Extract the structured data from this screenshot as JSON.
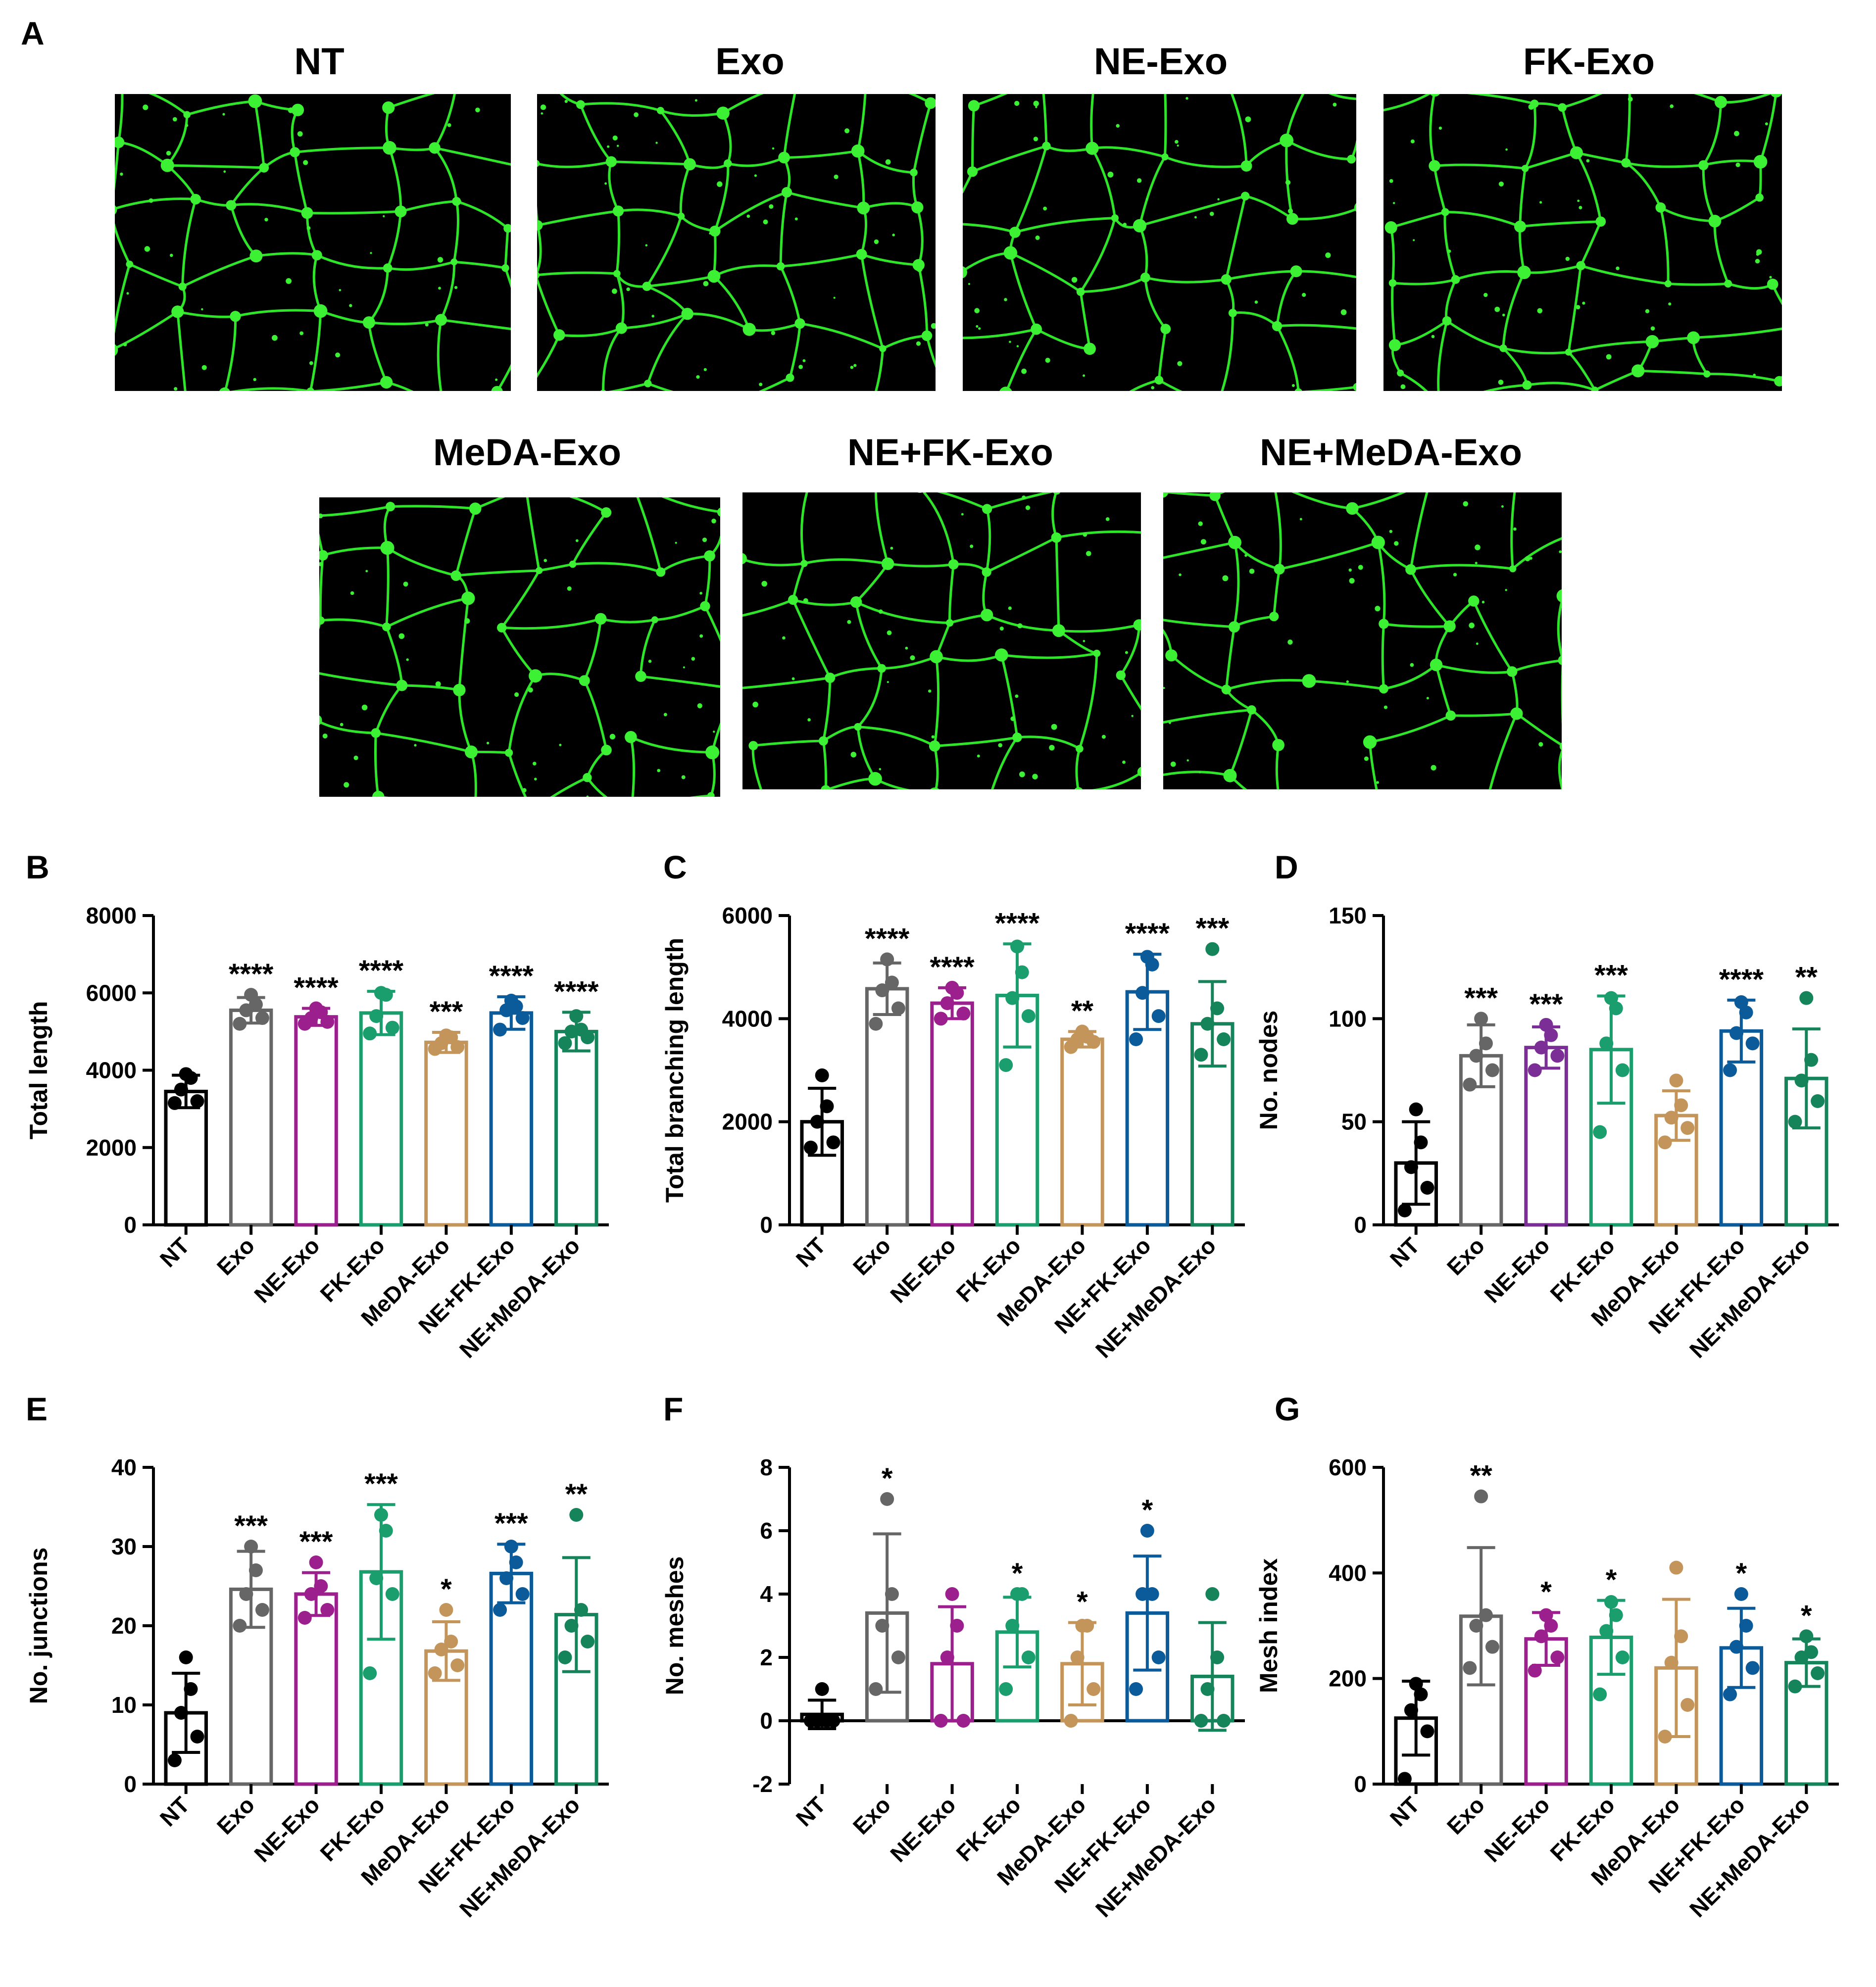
{
  "figure": {
    "panel_a": {
      "letter": "A",
      "images": [
        {
          "title": "NT"
        },
        {
          "title": "Exo"
        },
        {
          "title": "NE-Exo"
        },
        {
          "title": "FK-Exo"
        },
        {
          "title": "MeDA-Exo"
        },
        {
          "title": "NE+FK-Exo"
        },
        {
          "title": "NE+MeDA-Exo"
        }
      ],
      "fluorescence_color": "#2fe52a"
    }
  },
  "chart_data": [
    {
      "panel": "B",
      "type": "bar",
      "ylabel": "Total length",
      "ylim": [
        0,
        8000
      ],
      "yticks": [
        0,
        2000,
        4000,
        6000,
        8000
      ],
      "categories": [
        "NT",
        "Exo",
        "NE-Exo",
        "FK-Exo",
        "MeDA-Exo",
        "NE+FK-Exo",
        "NE+MeDA-Exo"
      ],
      "colors": [
        "#000000",
        "#666666",
        "#9b1f8c",
        "#1a9e6e",
        "#c4955a",
        "#0b5b9a",
        "#16845a"
      ],
      "means": [
        3450,
        5550,
        5380,
        5480,
        4720,
        5480,
        5000
      ],
      "sd": [
        420,
        330,
        220,
        560,
        260,
        420,
        500
      ],
      "points": [
        [
          3150,
          3200,
          3500,
          3800,
          3900
        ],
        [
          5200,
          5350,
          5550,
          5700,
          5950
        ],
        [
          5200,
          5250,
          5350,
          5500,
          5600
        ],
        [
          4950,
          5100,
          5400,
          5950,
          6000
        ],
        [
          4550,
          4600,
          4700,
          4850,
          4900
        ],
        [
          5050,
          5350,
          5550,
          5650,
          5800
        ],
        [
          4700,
          4850,
          5000,
          5050,
          5400
        ]
      ],
      "significance": [
        "",
        "****",
        "****",
        "****",
        "***",
        "****",
        "****"
      ]
    },
    {
      "panel": "C",
      "type": "bar",
      "ylabel": "Total branching length",
      "ylim": [
        0,
        6000
      ],
      "yticks": [
        0,
        2000,
        4000,
        6000
      ],
      "categories": [
        "NT",
        "Exo",
        "NE-Exo",
        "FK-Exo",
        "MeDA-Exo",
        "NE+FK-Exo",
        "NE+MeDA-Exo"
      ],
      "colors": [
        "#000000",
        "#666666",
        "#9b1f8c",
        "#1a9e6e",
        "#c4955a",
        "#0b5b9a",
        "#16845a"
      ],
      "means": [
        2000,
        4580,
        4300,
        4450,
        3600,
        4520,
        3900
      ],
      "sd": [
        650,
        500,
        300,
        1000,
        150,
        730,
        820
      ],
      "points": [
        [
          1500,
          1600,
          2000,
          2300,
          2900
        ],
        [
          3900,
          4200,
          4550,
          4700,
          5150
        ],
        [
          4000,
          4100,
          4300,
          4500,
          4600
        ],
        [
          3100,
          4050,
          4400,
          4900,
          5400
        ],
        [
          3450,
          3550,
          3600,
          3650,
          3750
        ],
        [
          3600,
          4050,
          4500,
          5050,
          5200
        ],
        [
          3300,
          3600,
          3900,
          4200,
          5350
        ]
      ],
      "significance": [
        "",
        "****",
        "****",
        "****",
        "**",
        "****",
        "***"
      ]
    },
    {
      "panel": "D",
      "type": "bar",
      "ylabel": "No. nodes",
      "ylim": [
        0,
        150
      ],
      "yticks": [
        0,
        50,
        100,
        150
      ],
      "categories": [
        "NT",
        "Exo",
        "NE-Exo",
        "FK-Exo",
        "MeDA-Exo",
        "NE+FK-Exo",
        "NE+MeDA-Exo"
      ],
      "colors": [
        "#000000",
        "#666666",
        "#7b2f96",
        "#1a9e6e",
        "#c4955a",
        "#0b5b9a",
        "#16845a"
      ],
      "means": [
        30,
        82,
        86,
        85,
        53,
        94,
        71
      ],
      "sd": [
        20,
        15,
        10,
        26,
        12,
        15,
        24
      ],
      "points": [
        [
          7,
          18,
          28,
          40,
          56
        ],
        [
          68,
          75,
          82,
          88,
          100
        ],
        [
          75,
          82,
          86,
          92,
          97
        ],
        [
          45,
          75,
          88,
          105,
          110
        ],
        [
          40,
          47,
          52,
          58,
          70
        ],
        [
          75,
          88,
          93,
          103,
          108
        ],
        [
          50,
          60,
          70,
          80,
          110
        ]
      ],
      "significance": [
        "",
        "***",
        "***",
        "***",
        "",
        "****",
        "**"
      ]
    },
    {
      "panel": "E",
      "type": "bar",
      "ylabel": "No. junctions",
      "ylim": [
        0,
        40
      ],
      "yticks": [
        0,
        10,
        20,
        30,
        40
      ],
      "categories": [
        "NT",
        "Exo",
        "NE-Exo",
        "FK-Exo",
        "MeDA-Exo",
        "NE+FK-Exo",
        "NE+MeDA-Exo"
      ],
      "colors": [
        "#000000",
        "#666666",
        "#9b1f8c",
        "#1a9e6e",
        "#c4955a",
        "#0b5b9a",
        "#16845a"
      ],
      "means": [
        9,
        24.6,
        24,
        26.8,
        16.8,
        26.6,
        21.4
      ],
      "sd": [
        5,
        4.8,
        2.7,
        8.5,
        3.7,
        3.7,
        7.2
      ],
      "points": [
        [
          3,
          6,
          9,
          12,
          16
        ],
        [
          20,
          22,
          24,
          27,
          30
        ],
        [
          21,
          22,
          24,
          25,
          28
        ],
        [
          14,
          24,
          26,
          32,
          34
        ],
        [
          14,
          15,
          17,
          18,
          22
        ],
        [
          22,
          24,
          26,
          28,
          30
        ],
        [
          16,
          18,
          20,
          22,
          34
        ]
      ],
      "significance": [
        "",
        "***",
        "***",
        "***",
        "*",
        "***",
        "**"
      ]
    },
    {
      "panel": "F",
      "type": "bar",
      "ylabel": "No. meshes",
      "ylim": [
        -2,
        8
      ],
      "yticks": [
        -2,
        0,
        2,
        4,
        6,
        8
      ],
      "categories": [
        "NT",
        "Exo",
        "NE-Exo",
        "FK-Exo",
        "MeDA-Exo",
        "NE+FK-Exo",
        "NE+MeDA-Exo"
      ],
      "colors": [
        "#000000",
        "#666666",
        "#9b1f8c",
        "#1a9e6e",
        "#c4955a",
        "#0b5b9a",
        "#16845a"
      ],
      "means": [
        0.2,
        3.4,
        1.8,
        2.8,
        1.8,
        3.4,
        1.4
      ],
      "sd": [
        0.45,
        2.5,
        1.8,
        1.1,
        1.3,
        1.8,
        1.7
      ],
      "points": [
        [
          0,
          0,
          0,
          0,
          1
        ],
        [
          1,
          2,
          3,
          4,
          7
        ],
        [
          0,
          0,
          2,
          3,
          4
        ],
        [
          1,
          2,
          3,
          4,
          4
        ],
        [
          0,
          1,
          2,
          3,
          3
        ],
        [
          1,
          2,
          4,
          4,
          6
        ],
        [
          0,
          0,
          1,
          2,
          4
        ]
      ],
      "significance": [
        "",
        "*",
        "",
        "*",
        "*",
        "*",
        ""
      ]
    },
    {
      "panel": "G",
      "type": "bar",
      "ylabel": "Mesh index",
      "ylim": [
        0,
        600
      ],
      "yticks": [
        0,
        200,
        400,
        600
      ],
      "categories": [
        "NT",
        "Exo",
        "NE-Exo",
        "FK-Exo",
        "MeDA-Exo",
        "NE+FK-Exo",
        "NE+MeDA-Exo"
      ],
      "colors": [
        "#000000",
        "#666666",
        "#9b1f8c",
        "#1a9e6e",
        "#c4955a",
        "#0b5b9a",
        "#16845a"
      ],
      "means": [
        125,
        318,
        275,
        278,
        220,
        258,
        230
      ],
      "sd": [
        70,
        130,
        50,
        70,
        130,
        75,
        45
      ],
      "points": [
        [
          10,
          100,
          140,
          170,
          190
        ],
        [
          220,
          260,
          300,
          320,
          545
        ],
        [
          215,
          240,
          280,
          300,
          320
        ],
        [
          170,
          240,
          290,
          320,
          345
        ],
        [
          90,
          150,
          230,
          280,
          410
        ],
        [
          170,
          220,
          260,
          300,
          360
        ],
        [
          185,
          210,
          240,
          250,
          280
        ]
      ],
      "significance": [
        "",
        "**",
        "*",
        "*",
        "",
        "*",
        "*"
      ]
    }
  ]
}
